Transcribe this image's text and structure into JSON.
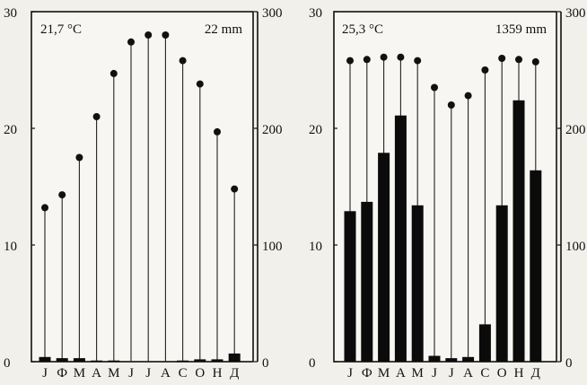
{
  "chart_data": [
    {
      "type": "bar",
      "categories": [
        "J",
        "Ф",
        "M",
        "A",
        "M",
        "J",
        "J",
        "A",
        "C",
        "O",
        "Н",
        "Д"
      ],
      "temperature_label": "21,7 °C",
      "precipitation_label": "22  mm",
      "left_axis": {
        "ticks": [
          "0",
          "10",
          "20",
          "30"
        ],
        "ylim": [
          0,
          30
        ]
      },
      "right_axis": {
        "ticks": [
          "0",
          "100",
          "200",
          "300"
        ],
        "ylim": [
          0,
          300
        ]
      },
      "series": [
        {
          "encoding": "bars",
          "axis": "left",
          "values": [
            0.4,
            0.3,
            0.3,
            0.1,
            0.1,
            0,
            0,
            0,
            0.1,
            0.2,
            0.2,
            0.7
          ]
        },
        {
          "encoding": "dots on stems",
          "axis": "right",
          "values": [
            132,
            143,
            175,
            210,
            247,
            274,
            280,
            280,
            258,
            238,
            197,
            148
          ]
        }
      ]
    },
    {
      "type": "bar",
      "categories": [
        "J",
        "Ф",
        "M",
        "A",
        "M",
        "J",
        "J",
        "A",
        "C",
        "O",
        "Н",
        "Д"
      ],
      "temperature_label": "25,3 °C",
      "precipitation_label": "1359 mm",
      "left_axis": {
        "ticks": [
          "0",
          "10",
          "20",
          "30"
        ],
        "ylim": [
          0,
          30
        ]
      },
      "right_axis": {
        "ticks": [
          "0",
          "100",
          "200",
          "300"
        ],
        "ylim": [
          0,
          300
        ]
      },
      "series": [
        {
          "encoding": "bars",
          "axis": "left",
          "values": [
            12.9,
            13.7,
            17.9,
            21.1,
            13.4,
            0.5,
            0.3,
            0.4,
            3.2,
            13.4,
            22.4,
            16.4
          ]
        },
        {
          "encoding": "dots on stems",
          "axis": "right",
          "values": [
            258,
            259,
            261,
            261,
            258,
            235,
            220,
            228,
            250,
            260,
            259,
            257
          ]
        }
      ]
    }
  ]
}
